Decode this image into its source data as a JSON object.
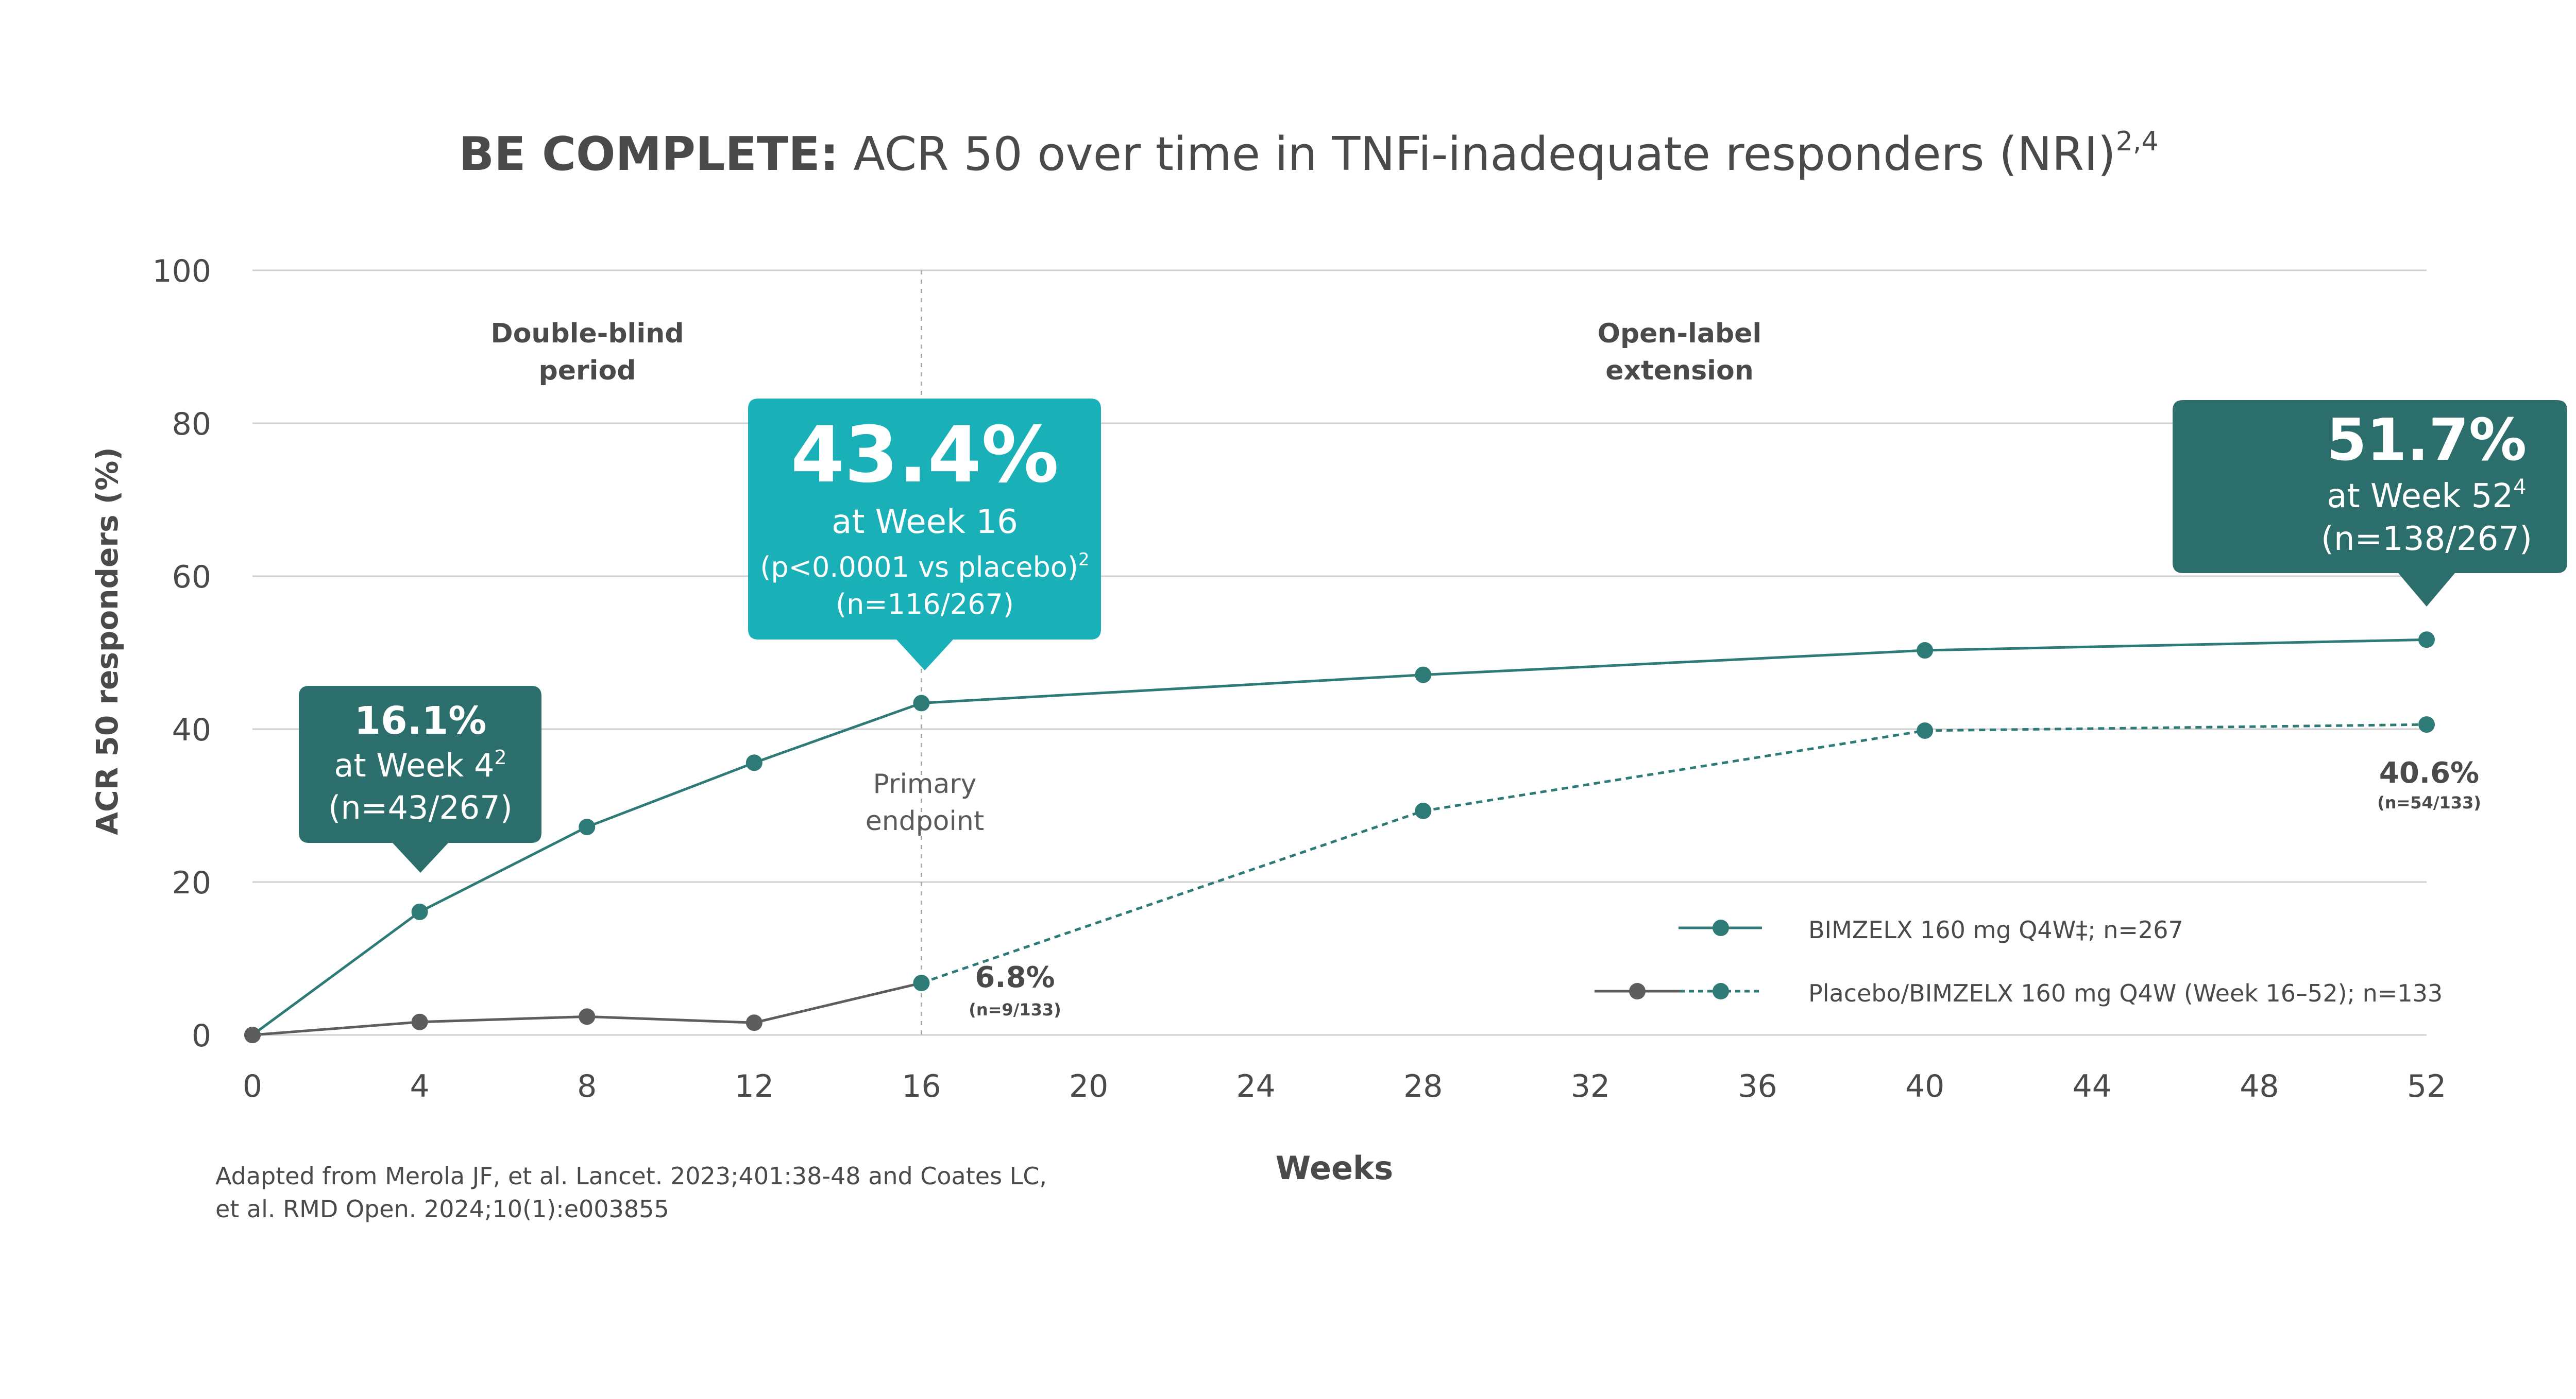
{
  "title": {
    "bold": "BE COMPLETE:",
    "rest": " ACR 50 over time in TNFi-inadequate responders (NRI)",
    "sup": "2,4"
  },
  "periods": {
    "double_blind": [
      "Double-blind",
      "period"
    ],
    "open_label": [
      "Open-label",
      "extension"
    ]
  },
  "primary_endpoint": [
    "Primary",
    "endpoint"
  ],
  "callouts": {
    "week4": {
      "big": "16.1%",
      "line1": "at Week 4",
      "line1_sup": "2",
      "line2": "(n=43/267)"
    },
    "week16": {
      "big": "43.4%",
      "line1": "at Week 16",
      "line2": "(p<0.0001 vs placebo)",
      "line2_sup": "2",
      "line3": "(n=116/267)"
    },
    "week52": {
      "big": "51.7%",
      "line1": "at Week 52",
      "line1_sup": "4",
      "line2": "(n=138/267)"
    }
  },
  "point_labels": {
    "placebo16": {
      "value": "6.8%",
      "n": "(n=9/133)"
    },
    "placebo52": {
      "value": "40.6%",
      "n": "(n=54/133)"
    }
  },
  "legend": {
    "bimzelx": "BIMZELX 160 mg Q4W‡; n=267",
    "placebo": "Placebo/BIMZELX 160 mg Q4W (Week 16–52); n=133"
  },
  "footnote": [
    "Adapted from Merola JF, et al. Lancet. 2023;401:38-48 and Coates LC,",
    "et al. RMD Open. 2024;10(1):e003855"
  ],
  "colors": {
    "bimzelx": "#2e7a76",
    "placebo": "#5d5d5d",
    "callout_teal_light": "#1ab0b8",
    "callout_teal_dark": "#2c6e6b",
    "grid": "#cfcfcf",
    "text": "#4a4a4a"
  },
  "chart_data": {
    "type": "line",
    "title": "BE COMPLETE: ACR 50 over time in TNFi-inadequate responders (NRI)",
    "xlabel": "Weeks",
    "ylabel": "ACR 50 responders (%)",
    "xlim": [
      0,
      52
    ],
    "ylim": [
      0,
      100
    ],
    "xticks": [
      0,
      4,
      8,
      12,
      16,
      20,
      24,
      28,
      32,
      36,
      40,
      44,
      48,
      52
    ],
    "yticks": [
      0,
      20,
      40,
      60,
      80,
      100
    ],
    "grid": "horizontal",
    "legend_position": "bottom-right",
    "series": [
      {
        "name": "BIMZELX 160 mg Q4W‡; n=267",
        "x": [
          0,
          4,
          8,
          12,
          16,
          28,
          40,
          52
        ],
        "values": [
          0,
          16.1,
          27.2,
          35.6,
          43.4,
          47.1,
          50.3,
          51.7
        ]
      },
      {
        "name": "Placebo/BIMZELX 160 mg Q4W (Week 16–52); n=133",
        "x": [
          0,
          4,
          8,
          12,
          16,
          28,
          40,
          52
        ],
        "values": [
          0,
          1.7,
          2.4,
          1.6,
          6.8,
          29.3,
          39.8,
          40.6
        ],
        "solid_until_x": 16
      }
    ],
    "reference_line_x": 16
  }
}
